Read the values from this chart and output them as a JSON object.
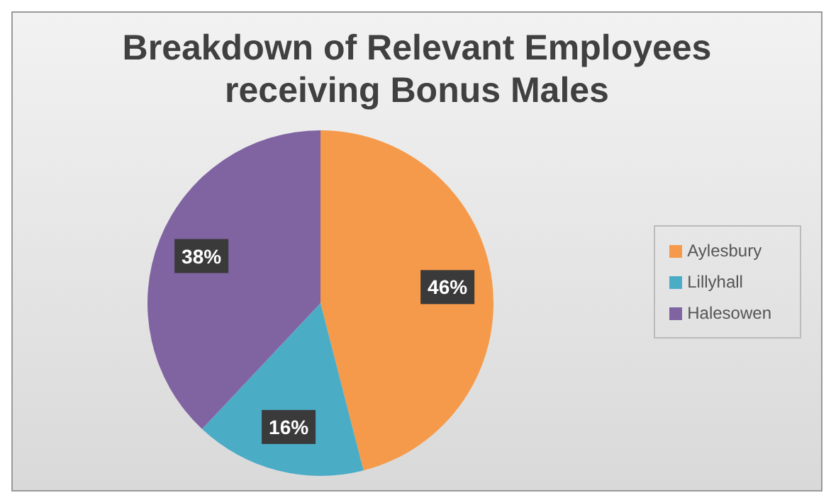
{
  "chart_data": {
    "type": "pie",
    "title": "Breakdown of Relevant Employees receiving Bonus  Males",
    "categories": [
      "Aylesbury",
      "Lillyhall",
      "Halesowen"
    ],
    "values": [
      46,
      16,
      38
    ],
    "value_labels": [
      "46%",
      "16%",
      "38%"
    ],
    "colors": [
      "#f59a4a",
      "#4bacc6",
      "#8064a2"
    ],
    "legend": "right"
  }
}
